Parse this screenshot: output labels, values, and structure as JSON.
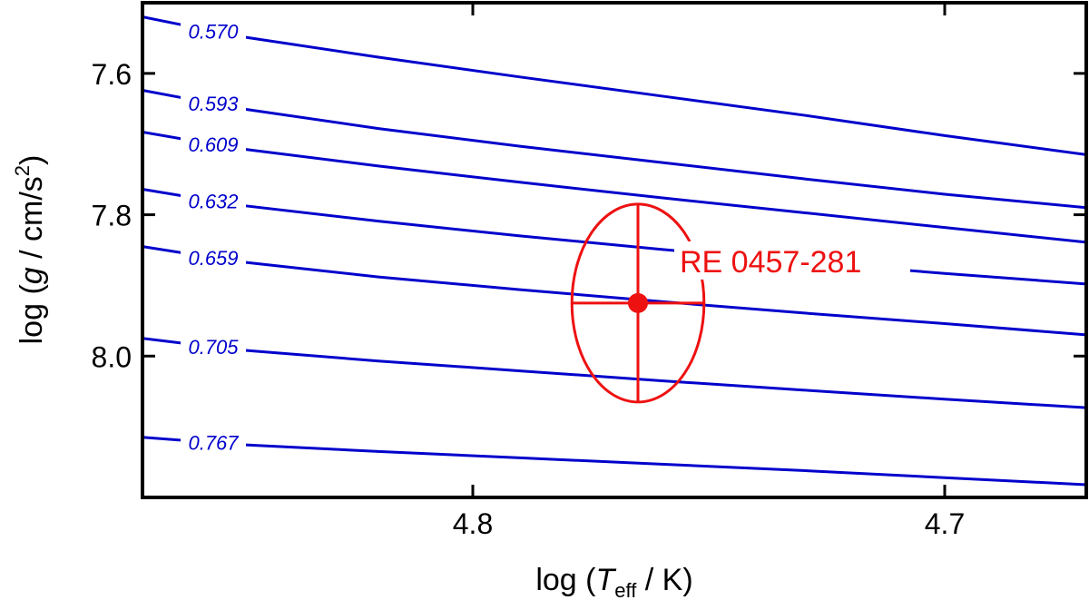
{
  "chart_data": {
    "type": "line",
    "xlabel": {
      "main": "log (",
      "T": "T",
      "sub": "eff",
      "tail": " / K)"
    },
    "ylabel": {
      "main": "log (",
      "g": "g",
      "unit": " / cm/s",
      "sup": "2",
      "tail": ")"
    },
    "xlim": [
      4.87,
      4.67
    ],
    "ylim": [
      8.2,
      7.5
    ],
    "x_reversed": true,
    "y_reversed": true,
    "x_ticks": [
      {
        "value": 4.8,
        "label": "4.8"
      },
      {
        "value": 4.7,
        "label": "4.7"
      }
    ],
    "y_ticks": [
      {
        "value": 7.6,
        "label": "7.6"
      },
      {
        "value": 7.8,
        "label": "7.8"
      },
      {
        "value": 8.0,
        "label": "8.0"
      }
    ],
    "series": [
      {
        "name": "0.570",
        "x": [
          4.87,
          4.85,
          4.82,
          4.79,
          4.76,
          4.73,
          4.7,
          4.67
        ],
        "y": [
          7.52,
          7.547,
          7.577,
          7.605,
          7.632,
          7.659,
          7.688,
          7.715
        ]
      },
      {
        "name": "0.593",
        "x": [
          4.87,
          4.85,
          4.82,
          4.79,
          4.76,
          4.73,
          4.7,
          4.67
        ],
        "y": [
          7.624,
          7.649,
          7.678,
          7.703,
          7.726,
          7.749,
          7.771,
          7.79
        ]
      },
      {
        "name": "0.609",
        "x": [
          4.87,
          4.85,
          4.82,
          4.79,
          4.76,
          4.73,
          4.7,
          4.67
        ],
        "y": [
          7.683,
          7.706,
          7.731,
          7.754,
          7.776,
          7.797,
          7.818,
          7.839
        ]
      },
      {
        "name": "0.632",
        "x": [
          4.87,
          4.85,
          4.82,
          4.79,
          4.76,
          4.73,
          4.7,
          4.67
        ],
        "y": [
          7.764,
          7.786,
          7.809,
          7.83,
          7.849,
          7.867,
          7.883,
          7.898
        ]
      },
      {
        "name": "0.659",
        "x": [
          4.87,
          4.85,
          4.82,
          4.79,
          4.76,
          4.73,
          4.7,
          4.67
        ],
        "y": [
          7.845,
          7.866,
          7.888,
          7.906,
          7.923,
          7.939,
          7.954,
          7.97
        ]
      },
      {
        "name": "0.705",
        "x": [
          4.87,
          4.85,
          4.82,
          4.79,
          4.76,
          4.73,
          4.7,
          4.67
        ],
        "y": [
          7.975,
          7.991,
          8.007,
          8.021,
          8.035,
          8.048,
          8.061,
          8.073
        ]
      },
      {
        "name": "0.767",
        "x": [
          4.87,
          4.85,
          4.82,
          4.79,
          4.76,
          4.73,
          4.7,
          4.67
        ],
        "y": [
          8.115,
          8.125,
          8.135,
          8.144,
          8.153,
          8.162,
          8.172,
          8.182
        ]
      }
    ],
    "track_label_x": 4.855,
    "point": {
      "name": "RE 0457-281",
      "x": 4.765,
      "y": 7.925,
      "x_err": 0.014,
      "y_err": 0.14
    },
    "grid": false,
    "legend": "none"
  }
}
